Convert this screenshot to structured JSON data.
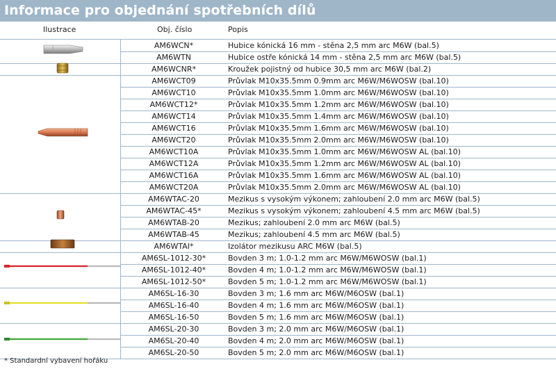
{
  "title": "Informace pro objednání spotřebních dílů",
  "headers": {
    "illustration": "Ilustrace",
    "code": "Obj. číslo",
    "desc": "Popis"
  },
  "rows": [
    {
      "code": "AM6WCN*",
      "desc": "Hubice kónická 16 mm - stěna 2,5 mm arc M6W (bal.5)"
    },
    {
      "code": "AM6WTN",
      "desc": "Hubice ostře kónická 14 mm - stěna 2,5 mm arc M6W (bal.5)"
    },
    {
      "code": "AM6WCNR*",
      "desc": "Kroužek pojistný od hubice 30,5 mm arc M6W (bal.2)"
    },
    {
      "code": "AM6WCT09",
      "desc": "Průvlak M10x35.5mm 0.9mm arc M6W/M6WOSW (bal.10)"
    },
    {
      "code": "AM6WCT10",
      "desc": "Průvlak M10x35.5mm 1.0mm arc M6W/M6WOSW (bal.10)"
    },
    {
      "code": "AM6WCT12*",
      "desc": "Průvlak M10x35.5mm 1.2mm arc M6W/M6WOSW (bal.10)"
    },
    {
      "code": "AM6WCT14",
      "desc": "Průvlak M10x35.5mm 1.4mm arc M6W/M6WOSW (bal.10)"
    },
    {
      "code": "AM6WCT16",
      "desc": "Průvlak M10x35.5mm 1.6mm arc M6W/M6WOSW (bal.10)"
    },
    {
      "code": "AM6WCT20",
      "desc": "Průvlak M10x35.5mm 2.0mm arc M6W/M6WOSW (bal.10)"
    },
    {
      "code": "AM6WCT10A",
      "desc": "Průvlak M10x35.5mm 1.0mm arc M6W/M6WOSW AL (bal.10)"
    },
    {
      "code": "AM6WCT12A",
      "desc": "Průvlak M10x35.5mm 1.2mm arc M6W/M6WOSW AL (bal.10)"
    },
    {
      "code": "AM6WCT16A",
      "desc": "Průvlak M10x35.5mm 1.6mm arc M6W/M6WOSW AL (bal.10)"
    },
    {
      "code": "AM6WCT20A",
      "desc": "Průvlak M10x35.5mm 2.0mm arc M6W/M6WOSW AL (bal.10)"
    },
    {
      "code": "AM6WTAC-20",
      "desc": "Mezikus s vysokým výkonem; zahloubení 2.0 mm arc M6W (bal.5)"
    },
    {
      "code": "AM6WTAC-45*",
      "desc": "Mezikus s vysokým výkonem; zahloubení 4.5 mm arc M6W (bal.5)"
    },
    {
      "code": "AM6WTAB-20",
      "desc": "Mezikus; zahloubení 2.0 mm arc M6W (bal.5)"
    },
    {
      "code": "AM6WTAB-45",
      "desc": "Mezikus; zahloubení 4.5 mm arc M6W (bal.5)"
    },
    {
      "code": "AM6WTAI*",
      "desc": "Izolátor mezikusu ARC M6W (bal.5)"
    },
    {
      "code": "AM6SL-1012-30*",
      "desc": "Bovden 3 m; 1.0-1.2 mm arc M6W/M6WOSW (bal.1)"
    },
    {
      "code": "AM6SL-1012-40*",
      "desc": "Bovden 4 m; 1.0-1.2 mm arc M6W/M6WOSW (bal.1)"
    },
    {
      "code": "AM6SL-1012-50*",
      "desc": "Bovden 5 m; 1.0-1.2 mm arc M6W/M6WOSW (bal.1)"
    },
    {
      "code": "AM6SL-16-30",
      "desc": "Bovden 3 m; 1.6 mm arc M6W/M6OSW (bal.1)"
    },
    {
      "code": "AM6SL-16-40",
      "desc": "Bovden 4 m; 1.6 mm arc M6W/M6OSW (bal.1)"
    },
    {
      "code": "AM6SL-16-50",
      "desc": "Bovden 5 m; 1.6 mm arc M6W/M6OSW (bal.1)"
    },
    {
      "code": "AM6SL-20-30",
      "desc": "Bovden 3 m; 2.0 mm arc M6W/M6OSW (bal.1)"
    },
    {
      "code": "AM6SL-20-40",
      "desc": "Bovden 4 m; 2.0 mm arc M6W/M6OSW (bal.1)"
    },
    {
      "code": "AM6SL-20-50",
      "desc": "Bovden 5 m; 2.0 mm arc M6W/M6OSW (bal.1)"
    }
  ],
  "footnote": "* Standardní vybavení hořáku",
  "illustrations": [
    {
      "icon": "conical-nozzle-icon"
    },
    {
      "icon": "locking-ring-icon"
    },
    {
      "icon": "contact-tip-icon"
    },
    {
      "icon": "tip-adapter-icon"
    },
    {
      "icon": "adapter-insulator-icon"
    },
    {
      "icon": "liner-red-icon",
      "color": "#d8232a"
    },
    {
      "icon": "liner-yellow-icon",
      "color": "#e6e02a"
    },
    {
      "icon": "liner-green-icon",
      "color": "#3ea83a"
    }
  ],
  "colors": {
    "accent": "#9fb6c9",
    "title_text": "#ffffff"
  }
}
